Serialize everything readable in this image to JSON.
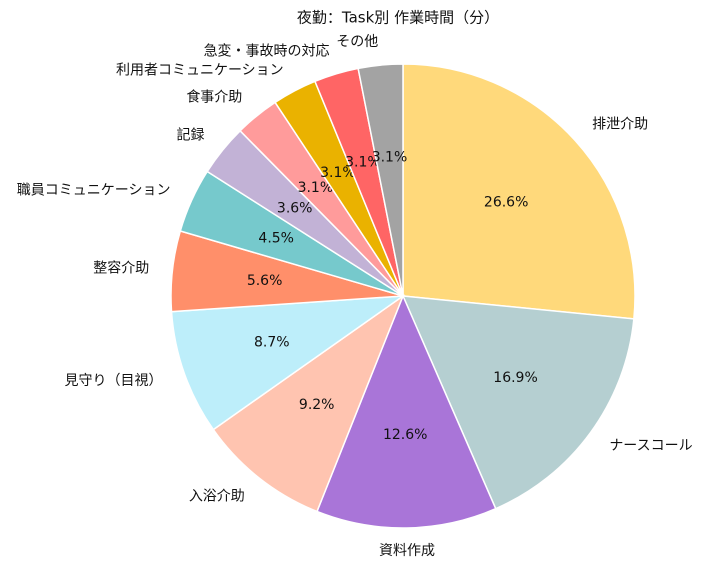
{
  "chart_data": {
    "type": "pie",
    "title": "夜勤：Task別 作業時間（分）",
    "categories": [
      "排泄介助",
      "ナースコール",
      "資料作成",
      "入浴介助",
      "見守り（目視）",
      "整容介助",
      "職員コミュニケーション",
      "記録",
      "食事介助",
      "利用者コミュニケーション",
      "急変・事故時の対応",
      "その他"
    ],
    "values": [
      26.6,
      16.9,
      12.6,
      9.2,
      8.7,
      5.6,
      4.5,
      3.6,
      3.1,
      3.1,
      3.1,
      3.1
    ],
    "value_labels": [
      "26.6%",
      "16.9%",
      "12.6%",
      "9.2%",
      "8.7%",
      "5.6%",
      "4.5%",
      "3.6%",
      "3.1%",
      "3.1%",
      "3.1%",
      "3.1%"
    ],
    "colors": [
      "#ffd97b",
      "#b5cfd1",
      "#a975d8",
      "#ffc4b0",
      "#bdeefa",
      "#ff8f6a",
      "#76c9cc",
      "#c2b2d6",
      "#ff9b9b",
      "#eab200",
      "#ff6565",
      "#a3a3a3"
    ]
  }
}
